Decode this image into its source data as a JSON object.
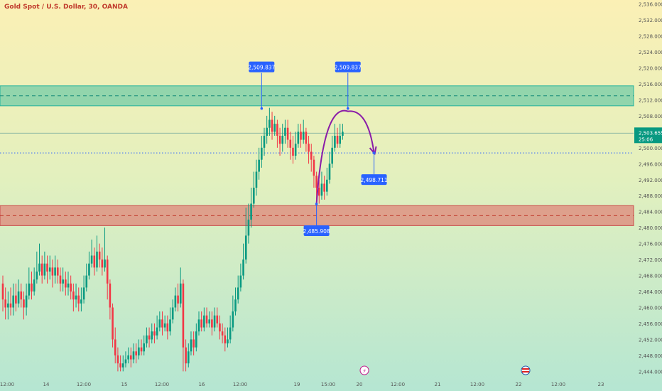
{
  "header": {
    "title": "Gold Spot / U.S. Dollar, 30, OANDA"
  },
  "price_axis": {
    "labels": [
      "2,536.000",
      "2,532.000",
      "2,528.000",
      "2,524.000",
      "2,520.000",
      "2,516.000",
      "2,512.000",
      "2,508.000",
      "2,504.000",
      "2,500.000",
      "2,496.000",
      "2,492.000",
      "2,488.000",
      "2,484.000",
      "2,480.000",
      "2,476.000",
      "2,472.000",
      "2,468.000",
      "2,464.000",
      "2,460.000",
      "2,456.000",
      "2,452.000",
      "2,448.000",
      "2,444.000"
    ],
    "current_price": "2,503.655",
    "countdown": "25:06",
    "current_price_color": "#089981"
  },
  "time_axis": {
    "labels": [
      "12:00",
      "14",
      "12:00",
      "15",
      "12:00",
      "16",
      "12:00",
      "19",
      "15:00",
      "20",
      "12:00",
      "21",
      "12:00",
      "22",
      "12:00",
      "23"
    ]
  },
  "chart_data": {
    "type": "candlestick",
    "title": "Gold Spot / U.S. Dollar, 30, OANDA",
    "ylim": [
      2443,
      2537
    ],
    "candles": [
      [
        2466,
        2462,
        2468,
        2459
      ],
      [
        2462,
        2460,
        2465,
        2457
      ],
      [
        2460,
        2461,
        2464,
        2457
      ],
      [
        2461,
        2460,
        2465,
        2458
      ],
      [
        2460,
        2463,
        2466,
        2458
      ],
      [
        2463,
        2461,
        2466,
        2459
      ],
      [
        2461,
        2464,
        2467,
        2460
      ],
      [
        2464,
        2462,
        2466,
        2460
      ],
      [
        2462,
        2460,
        2464,
        2457
      ],
      [
        2460,
        2463,
        2466,
        2458
      ],
      [
        2463,
        2466,
        2470,
        2462
      ],
      [
        2466,
        2464,
        2469,
        2462
      ],
      [
        2464,
        2467,
        2470,
        2463
      ],
      [
        2467,
        2469,
        2474,
        2466
      ],
      [
        2469,
        2471,
        2476,
        2468
      ],
      [
        2471,
        2468,
        2473,
        2466
      ],
      [
        2468,
        2471,
        2474,
        2467
      ],
      [
        2471,
        2469,
        2473,
        2466
      ],
      [
        2469,
        2470,
        2473,
        2467
      ],
      [
        2470,
        2468,
        2472,
        2465
      ],
      [
        2468,
        2470,
        2473,
        2466
      ],
      [
        2470,
        2468,
        2472,
        2466
      ],
      [
        2468,
        2466,
        2470,
        2464
      ],
      [
        2466,
        2467,
        2470,
        2464
      ],
      [
        2467,
        2465,
        2469,
        2463
      ],
      [
        2465,
        2466,
        2469,
        2463
      ],
      [
        2466,
        2464,
        2468,
        2462
      ],
      [
        2464,
        2462,
        2466,
        2459
      ],
      [
        2462,
        2463,
        2466,
        2460
      ],
      [
        2463,
        2461,
        2465,
        2459
      ],
      [
        2461,
        2462,
        2465,
        2459
      ],
      [
        2462,
        2465,
        2468,
        2461
      ],
      [
        2465,
        2468,
        2471,
        2464
      ],
      [
        2468,
        2471,
        2474,
        2467
      ],
      [
        2471,
        2473,
        2477,
        2470
      ],
      [
        2473,
        2470,
        2475,
        2468
      ],
      [
        2470,
        2474,
        2478,
        2469
      ],
      [
        2474,
        2472,
        2476,
        2470
      ],
      [
        2472,
        2470,
        2475,
        2468
      ],
      [
        2470,
        2472,
        2480,
        2469
      ],
      [
        2472,
        2466,
        2473,
        2462
      ],
      [
        2466,
        2460,
        2467,
        2457
      ],
      [
        2460,
        2452,
        2461,
        2450
      ],
      [
        2452,
        2448,
        2455,
        2446
      ],
      [
        2448,
        2446,
        2450,
        2444
      ],
      [
        2446,
        2445,
        2448,
        2444
      ],
      [
        2445,
        2446,
        2448,
        2444
      ],
      [
        2446,
        2447,
        2449,
        2445
      ],
      [
        2447,
        2448,
        2450,
        2446
      ],
      [
        2448,
        2447,
        2450,
        2445
      ],
      [
        2447,
        2449,
        2451,
        2446
      ],
      [
        2449,
        2448,
        2451,
        2446
      ],
      [
        2448,
        2450,
        2452,
        2447
      ],
      [
        2450,
        2449,
        2452,
        2448
      ],
      [
        2449,
        2451,
        2453,
        2448
      ],
      [
        2451,
        2453,
        2455,
        2450
      ],
      [
        2453,
        2452,
        2455,
        2450
      ],
      [
        2452,
        2454,
        2456,
        2451
      ],
      [
        2454,
        2453,
        2456,
        2451
      ],
      [
        2453,
        2455,
        2458,
        2452
      ],
      [
        2455,
        2457,
        2459,
        2454
      ],
      [
        2457,
        2455,
        2459,
        2453
      ],
      [
        2455,
        2456,
        2458,
        2454
      ],
      [
        2456,
        2454,
        2458,
        2452
      ],
      [
        2454,
        2457,
        2460,
        2453
      ],
      [
        2457,
        2460,
        2462,
        2456
      ],
      [
        2460,
        2463,
        2465,
        2459
      ],
      [
        2463,
        2461,
        2466,
        2459
      ],
      [
        2461,
        2466,
        2470,
        2460
      ],
      [
        2466,
        2450,
        2467,
        2444
      ],
      [
        2450,
        2446,
        2452,
        2444
      ],
      [
        2446,
        2449,
        2451,
        2445
      ],
      [
        2449,
        2452,
        2454,
        2448
      ],
      [
        2452,
        2450,
        2454,
        2448
      ],
      [
        2450,
        2454,
        2456,
        2449
      ],
      [
        2454,
        2457,
        2459,
        2453
      ],
      [
        2457,
        2455,
        2459,
        2454
      ],
      [
        2455,
        2458,
        2460,
        2454
      ],
      [
        2458,
        2456,
        2460,
        2455
      ],
      [
        2456,
        2457,
        2459,
        2455
      ],
      [
        2457,
        2455,
        2459,
        2453
      ],
      [
        2455,
        2458,
        2460,
        2454
      ],
      [
        2458,
        2456,
        2460,
        2455
      ],
      [
        2456,
        2454,
        2458,
        2452
      ],
      [
        2454,
        2453,
        2456,
        2451
      ],
      [
        2453,
        2451,
        2455,
        2449
      ],
      [
        2451,
        2452,
        2455,
        2450
      ],
      [
        2452,
        2455,
        2458,
        2451
      ],
      [
        2455,
        2459,
        2463,
        2454
      ],
      [
        2459,
        2462,
        2465,
        2458
      ],
      [
        2462,
        2465,
        2468,
        2461
      ],
      [
        2465,
        2468,
        2471,
        2464
      ],
      [
        2468,
        2472,
        2476,
        2467
      ],
      [
        2472,
        2478,
        2485,
        2471
      ],
      [
        2478,
        2482,
        2486,
        2476
      ],
      [
        2482,
        2486,
        2490,
        2480
      ],
      [
        2486,
        2490,
        2494,
        2485
      ],
      [
        2490,
        2494,
        2497,
        2488
      ],
      [
        2494,
        2497,
        2500,
        2492
      ],
      [
        2497,
        2500,
        2503,
        2495
      ],
      [
        2500,
        2503,
        2505,
        2498
      ],
      [
        2503,
        2505,
        2508,
        2501
      ],
      [
        2505,
        2507,
        2510,
        2503
      ],
      [
        2507,
        2504,
        2509,
        2502
      ],
      [
        2504,
        2506,
        2508,
        2503
      ],
      [
        2506,
        2503,
        2507,
        2500
      ],
      [
        2503,
        2501,
        2505,
        2498
      ],
      [
        2501,
        2503,
        2506,
        2499
      ],
      [
        2503,
        2505,
        2507,
        2501
      ],
      [
        2505,
        2502,
        2507,
        2500
      ],
      [
        2502,
        2500,
        2504,
        2497
      ],
      [
        2500,
        2498,
        2503,
        2496
      ],
      [
        2498,
        2501,
        2504,
        2497
      ],
      [
        2501,
        2504,
        2506,
        2500
      ],
      [
        2504,
        2502,
        2506,
        2500
      ],
      [
        2502,
        2504,
        2507,
        2501
      ],
      [
        2504,
        2501,
        2505,
        2499
      ],
      [
        2501,
        2499,
        2503,
        2496
      ],
      [
        2499,
        2497,
        2501,
        2494
      ],
      [
        2497,
        2493,
        2498,
        2490
      ],
      [
        2493,
        2490,
        2494,
        2487
      ],
      [
        2490,
        2488,
        2492,
        2486
      ],
      [
        2488,
        2491,
        2494,
        2487
      ],
      [
        2491,
        2489,
        2493,
        2487
      ],
      [
        2489,
        2492,
        2495,
        2488
      ],
      [
        2492,
        2496,
        2499,
        2491
      ],
      [
        2496,
        2500,
        2503,
        2495
      ],
      [
        2500,
        2503,
        2506,
        2499
      ],
      [
        2503,
        2501,
        2505,
        2500
      ],
      [
        2501,
        2503,
        2506,
        2500
      ],
      [
        2503,
        2504,
        2506,
        2502
      ]
    ],
    "resistance_zone": [
      2510.5,
      2515.5
    ],
    "resistance_mid": 2513,
    "support_zone": [
      2480.5,
      2485.5
    ],
    "support_mid": 2483,
    "current_price": 2503.655,
    "target_level": 2498.711,
    "annotations": [
      {
        "label": "2,509.837",
        "price": 2509.837,
        "candle": 99
      },
      {
        "label": "2,509.837",
        "price": 2509.837,
        "candle": 132
      },
      {
        "label": "2,485.908",
        "price": 2485.908,
        "candle": 120
      },
      {
        "label": "2,498.711",
        "price": 2498.711,
        "candle": 142
      }
    ],
    "projection": {
      "from_candle": 120,
      "from_price": 2485.908,
      "peak_candle": 132,
      "peak_price": 2509.837,
      "to_candle": 142,
      "to_price": 2498.711
    },
    "colors": {
      "up": "#089981",
      "down": "#f23645",
      "resistance": "#22b39c",
      "support": "#e06060",
      "projection": "#8a1ca8",
      "label_bg": "#2962ff"
    }
  }
}
